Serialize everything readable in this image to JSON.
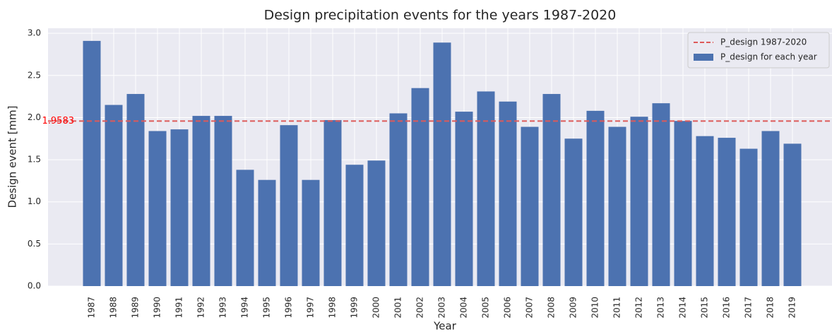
{
  "chart_data": {
    "type": "bar",
    "title": "Design precipitation events for the years 1987-2020",
    "x_label": "Year",
    "y_label": "Design event [mm]",
    "categories": [
      "1987",
      "1988",
      "1989",
      "1990",
      "1991",
      "1992",
      "1993",
      "1994",
      "1995",
      "1996",
      "1997",
      "1998",
      "1999",
      "2000",
      "2001",
      "2002",
      "2003",
      "2004",
      "2005",
      "2006",
      "2007",
      "2008",
      "2009",
      "2010",
      "2011",
      "2012",
      "2013",
      "2014",
      "2015",
      "2016",
      "2017",
      "2018",
      "2019"
    ],
    "series": [
      {
        "name": "P_design for each year",
        "color": "#4c72b0",
        "values": [
          2.91,
          2.15,
          2.28,
          1.84,
          1.86,
          2.02,
          2.02,
          1.38,
          1.26,
          1.91,
          1.26,
          1.97,
          1.44,
          1.49,
          2.05,
          2.35,
          2.89,
          2.07,
          2.31,
          2.19,
          1.89,
          2.28,
          1.75,
          2.08,
          1.89,
          2.01,
          2.17,
          1.96,
          1.78,
          1.76,
          1.63,
          1.84,
          1.69
        ]
      }
    ],
    "hline": {
      "name": "P_design 1987-2020",
      "value": 1.9583,
      "color": "#dd5a5a"
    },
    "ylim": [
      0,
      3.06
    ],
    "yticks": [
      {
        "value": 0,
        "label": "0.0"
      },
      0.5,
      {
        "value": 1,
        "label": "1.0"
      },
      1.5,
      {
        "value": 2,
        "label": "2.0"
      },
      2.5,
      {
        "value": 3,
        "label": "3.0"
      }
    ],
    "grid": true,
    "legend": "upper right"
  }
}
